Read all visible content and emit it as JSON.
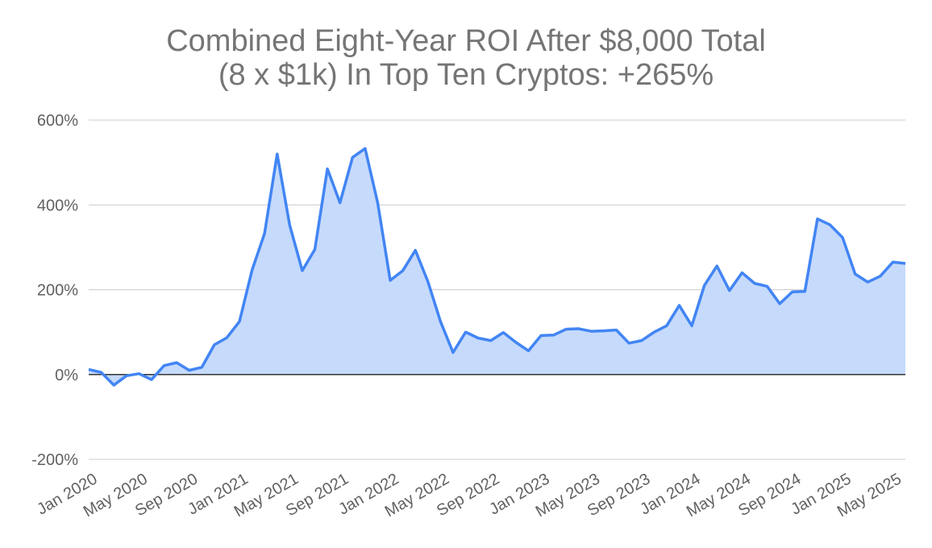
{
  "chart_data": {
    "type": "area",
    "title": [
      "Combined Eight-Year ROI After $8,000 Total",
      "(8 x $1k) In Top Ten Cryptos: +265%"
    ],
    "ylim": [
      -200,
      600
    ],
    "y_ticks": [
      "-200%",
      "0%",
      "200%",
      "400%",
      "600%"
    ],
    "x_ticks": [
      "Jan 2020",
      "May 2020",
      "Sep 2020",
      "Jan 2021",
      "May 2021",
      "Sep 2021",
      "Jan 2022",
      "May 2022",
      "Sep 2022",
      "Jan 2023",
      "May 2023",
      "Sep 2023",
      "Jan 2024",
      "May 2024",
      "Sep 2024",
      "Jan 2025",
      "May 2025"
    ],
    "grid": true,
    "colors": {
      "line": "#4285f4",
      "fill": "#c6dafc",
      "grid": "#cccccc",
      "zero_line": "#333333"
    },
    "series": [
      {
        "x": [
          "2020-01",
          "2020-02",
          "2020-03",
          "2020-04",
          "2020-05",
          "2020-06",
          "2020-07",
          "2020-08",
          "2020-09",
          "2020-10",
          "2020-11",
          "2020-12",
          "2021-01",
          "2021-02",
          "2021-03",
          "2021-04",
          "2021-05",
          "2021-06",
          "2021-07",
          "2021-08",
          "2021-09",
          "2021-10",
          "2021-11",
          "2021-12",
          "2022-01",
          "2022-02",
          "2022-03",
          "2022-04",
          "2022-05",
          "2022-06",
          "2022-07",
          "2022-08",
          "2022-09",
          "2022-10",
          "2022-11",
          "2022-12",
          "2023-01",
          "2023-02",
          "2023-03",
          "2023-04",
          "2023-05",
          "2023-06",
          "2023-07",
          "2023-08",
          "2023-09",
          "2023-10",
          "2023-11",
          "2023-12",
          "2024-01",
          "2024-02",
          "2024-03",
          "2024-04",
          "2024-05",
          "2024-06",
          "2024-07",
          "2024-08",
          "2024-09",
          "2024-10",
          "2024-11",
          "2024-12",
          "2025-01",
          "2025-02",
          "2025-03",
          "2025-04",
          "2025-05",
          "2025-06"
        ],
        "values": [
          12,
          5,
          -25,
          -3,
          2,
          -12,
          21,
          28,
          10,
          17,
          70,
          87,
          125,
          246,
          333,
          520,
          352,
          245,
          295,
          485,
          405,
          512,
          533,
          405,
          222,
          245,
          293,
          219,
          125,
          52,
          100,
          86,
          80,
          99,
          76,
          56,
          92,
          93,
          107,
          108,
          102,
          103,
          105,
          74,
          80,
          100,
          115,
          163,
          115,
          210,
          256,
          198,
          240,
          215,
          208,
          167,
          195,
          196,
          367,
          353,
          323,
          237,
          218,
          232,
          265,
          262
        ]
      }
    ]
  }
}
